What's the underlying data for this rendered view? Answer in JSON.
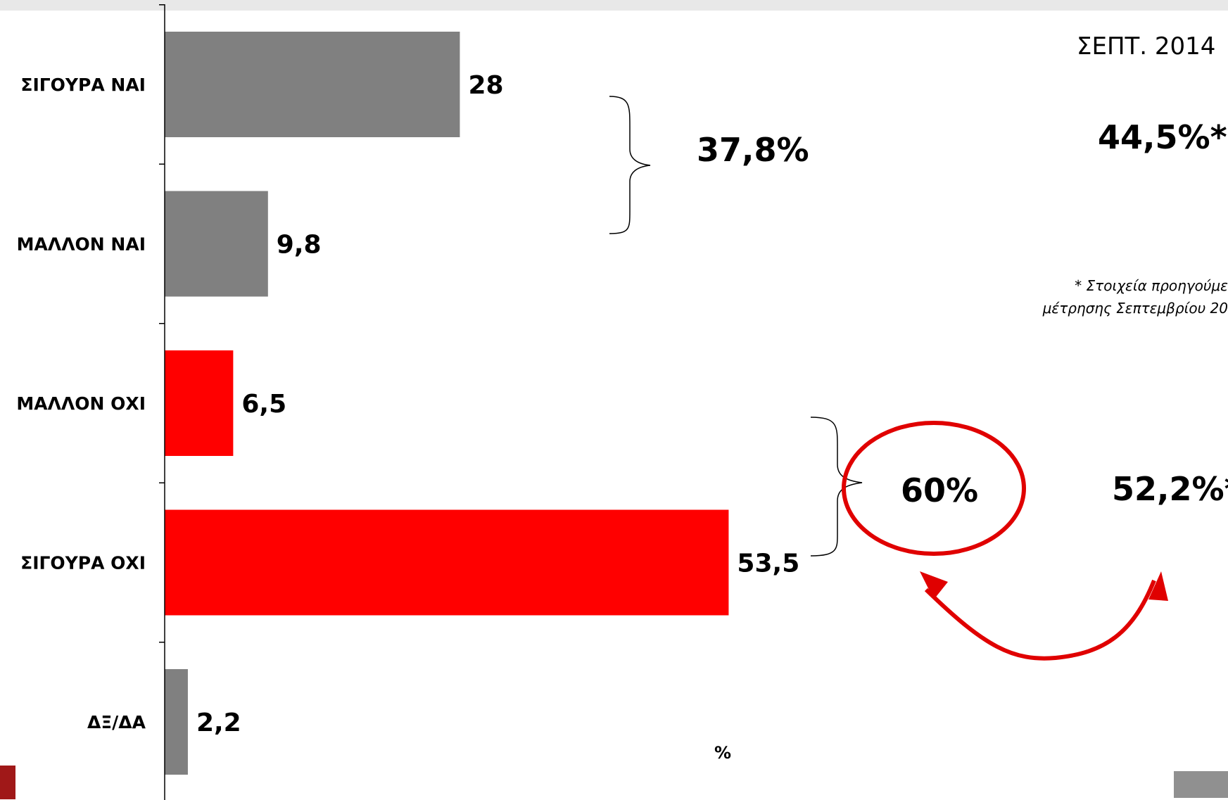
{
  "period_label": "ΣΕΠΤ. 2014",
  "previous": {
    "yes_total": "44,5%*",
    "no_total": "52,2%*"
  },
  "totals": {
    "yes": "37,8%",
    "no": "60%"
  },
  "footnote": {
    "line1": "* Στοιχεία προηγούμε",
    "line2": "μέτρησης Σεπτεμβρίου 20"
  },
  "unit_label": "%",
  "colors": {
    "gray": "#808080",
    "red": "#ff0000",
    "annotation": "#e00000"
  },
  "chart_data": {
    "type": "bar",
    "orientation": "horizontal",
    "categories": [
      "ΣΙΓΟΥΡΑ ΝΑΙ",
      "ΜΑΛΛΟΝ ΝΑΙ",
      "ΜΑΛΛΟΝ ΟΧΙ",
      "ΣΙΓΟΥΡΑ ΟΧΙ",
      "ΔΞ/ΔΑ"
    ],
    "values": [
      28,
      9.8,
      6.5,
      53.5,
      2.2
    ],
    "value_labels": [
      "28",
      "9,8",
      "6,5",
      "53,5",
      "2,2"
    ],
    "bar_colors": [
      "#808080",
      "#808080",
      "#ff0000",
      "#ff0000",
      "#808080"
    ],
    "xlim": [
      0,
      100
    ],
    "grid": false,
    "legend": "none"
  }
}
